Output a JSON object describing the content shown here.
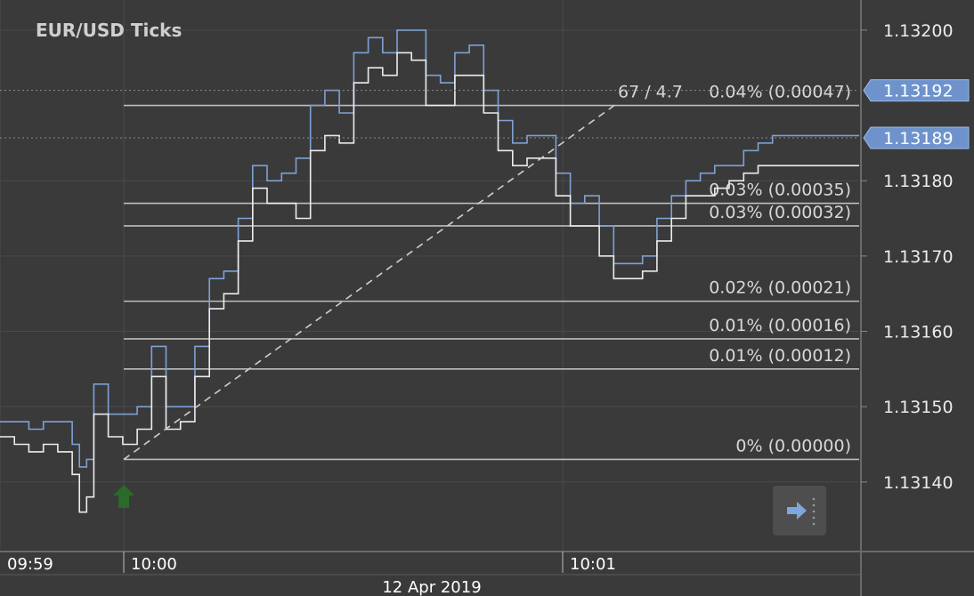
{
  "chart_data": {
    "type": "line",
    "title": "EUR/USD  Ticks",
    "date_label": "12 Apr 2019",
    "x_ticks": [
      "09:59",
      "10:00",
      "10:01"
    ],
    "y_ticks": [
      "1.13200",
      "1.13180",
      "1.13170",
      "1.13160",
      "1.13150",
      "1.13140"
    ],
    "ylim": [
      1.13131,
      1.13204
    ],
    "grid": true,
    "series": [
      {
        "role": "ask",
        "color": "#7ea1d6",
        "x": [
          0,
          2,
          4,
          6,
          8,
          10,
          11,
          12,
          13,
          15,
          17,
          19,
          21,
          23,
          25,
          27,
          29,
          31,
          33,
          35,
          37,
          39,
          41,
          43,
          45,
          47,
          49,
          51,
          53,
          55,
          57,
          59,
          61,
          63,
          65,
          67,
          69,
          71,
          73,
          75,
          77,
          79,
          81,
          83,
          85,
          87,
          89,
          91,
          93,
          95,
          97,
          99,
          101,
          103,
          105,
          107,
          109,
          111,
          113,
          115,
          117,
          119
        ],
        "values": [
          1.13148,
          1.13148,
          1.13147,
          1.13148,
          1.13148,
          1.13145,
          1.13142,
          1.13143,
          1.13153,
          1.13149,
          1.13149,
          1.1315,
          1.13158,
          1.1315,
          1.1315,
          1.13158,
          1.13167,
          1.13168,
          1.13175,
          1.13182,
          1.1318,
          1.13181,
          1.13183,
          1.1319,
          1.13192,
          1.13189,
          1.13197,
          1.13199,
          1.13197,
          1.132,
          1.132,
          1.13194,
          1.13193,
          1.13197,
          1.13198,
          1.13192,
          1.13188,
          1.13185,
          1.13186,
          1.13186,
          1.13181,
          1.13177,
          1.13178,
          1.13174,
          1.13169,
          1.13169,
          1.1317,
          1.13175,
          1.13178,
          1.1318,
          1.13181,
          1.13182,
          1.13182,
          1.13184,
          1.13185,
          1.13186,
          1.13186,
          1.13186,
          1.13186,
          1.13186,
          1.13186,
          1.13186
        ]
      },
      {
        "role": "bid",
        "color": "#ececec",
        "x": [
          0,
          2,
          4,
          6,
          8,
          10,
          11,
          12,
          13,
          15,
          17,
          19,
          21,
          23,
          25,
          27,
          29,
          31,
          33,
          35,
          37,
          39,
          41,
          43,
          45,
          47,
          49,
          51,
          53,
          55,
          57,
          59,
          61,
          63,
          65,
          67,
          69,
          71,
          73,
          75,
          77,
          79,
          81,
          83,
          85,
          87,
          89,
          91,
          93,
          95,
          97,
          99,
          101,
          103,
          105,
          107,
          109,
          111,
          113,
          115,
          117,
          119
        ],
        "values": [
          1.13146,
          1.13145,
          1.13144,
          1.13145,
          1.13144,
          1.13141,
          1.13136,
          1.13138,
          1.13149,
          1.13146,
          1.13145,
          1.13147,
          1.13154,
          1.13147,
          1.13148,
          1.13154,
          1.13163,
          1.13165,
          1.13172,
          1.13179,
          1.13177,
          1.13177,
          1.13175,
          1.13184,
          1.13186,
          1.13185,
          1.13193,
          1.13195,
          1.13194,
          1.13197,
          1.13196,
          1.1319,
          1.1319,
          1.13194,
          1.13194,
          1.13189,
          1.13184,
          1.13182,
          1.13183,
          1.13183,
          1.13178,
          1.13174,
          1.13174,
          1.1317,
          1.13167,
          1.13167,
          1.13168,
          1.13172,
          1.13175,
          1.13178,
          1.13178,
          1.13179,
          1.1318,
          1.13181,
          1.13182,
          1.13182,
          1.13182,
          1.13182,
          1.13182,
          1.13182,
          1.13182,
          1.13182
        ]
      }
    ],
    "fibonacci": [
      {
        "label": "0.04% (0.00047)",
        "price": 1.1319
      },
      {
        "label": "0.03% (0.00035)",
        "price": 1.13177
      },
      {
        "label": "0.03% (0.00032)",
        "price": 1.13174
      },
      {
        "label": "0.02% (0.00021)",
        "price": 1.13164
      },
      {
        "label": "0.01% (0.00016)",
        "price": 1.13159
      },
      {
        "label": "0.01% (0.00012)",
        "price": 1.13155
      },
      {
        "label": "0% (0.00000)",
        "price": 1.13143
      }
    ],
    "trend_line_label": "67 / 4.7",
    "price_tags": [
      {
        "value": "1.13192",
        "role": "ask"
      },
      {
        "value": "1.13189",
        "role": "bid"
      }
    ]
  },
  "colors": {
    "background": "#3a3a3a",
    "grid": "#4a4a4a",
    "fib_line": "#bdbdbd",
    "ask_tag": "#6e93cc",
    "arrow": "#2a6a2a"
  },
  "icons": {
    "scroll_button": "arrow-right-dotted-icon",
    "buy_marker": "green-up-arrow-icon"
  }
}
